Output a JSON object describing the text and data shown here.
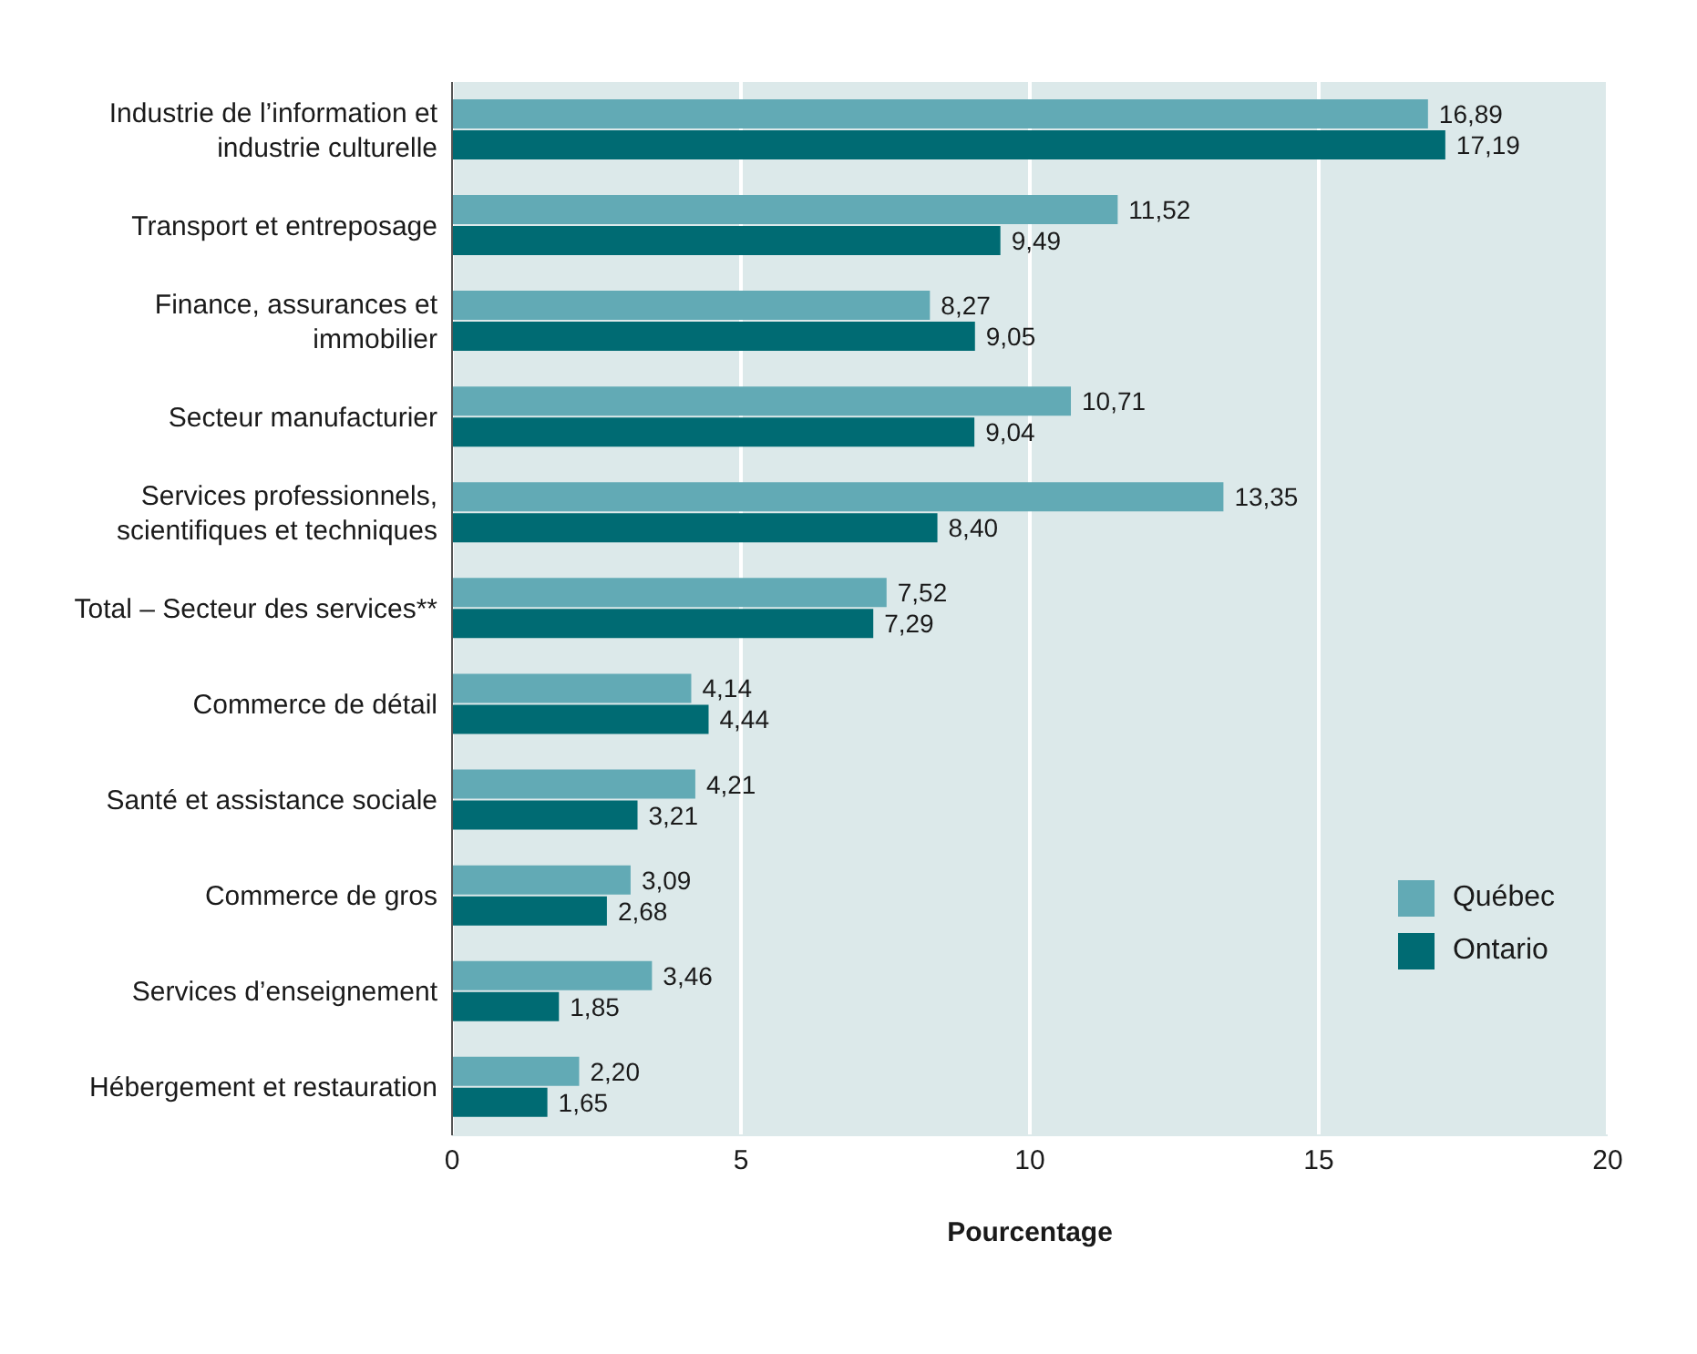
{
  "chart_data": {
    "type": "bar",
    "orientation": "horizontal",
    "xlabel": "Pourcentage",
    "categories": [
      "Industrie de l’information et industrie culturelle",
      "Transport et entreposage",
      "Finance, assurances et immobilier",
      "Secteur manufacturier",
      "Services professionnels, scientifiques et techniques",
      "Total – Secteur des services**",
      "Commerce de détail",
      "Santé et assistance sociale",
      "Commerce de gros",
      "Services d’enseignement",
      "Hébergement et restauration"
    ],
    "series": [
      {
        "name": "Québec",
        "color": "#62aab5",
        "values": [
          16.89,
          11.52,
          8.27,
          10.71,
          13.35,
          7.52,
          4.14,
          4.21,
          3.09,
          3.46,
          2.2
        ],
        "value_labels": [
          "16,89",
          "11,52",
          "8,27",
          "10,71",
          "13,35",
          "7,52",
          "4,14",
          "4,21",
          "3,09",
          "3,46",
          "2,20"
        ]
      },
      {
        "name": "Ontario",
        "color": "#006b73",
        "values": [
          17.19,
          9.49,
          9.05,
          9.04,
          8.4,
          7.29,
          4.44,
          3.21,
          2.68,
          1.85,
          1.65
        ],
        "value_labels": [
          "17,19",
          "9,49",
          "9,05",
          "9,04",
          "8,40",
          "7,29",
          "4,44",
          "3,21",
          "2,68",
          "1,85",
          "1,65"
        ]
      }
    ],
    "xlim": [
      0,
      20
    ],
    "xticks": [
      0,
      5,
      10,
      15,
      20
    ],
    "grid": "x",
    "legend": "right"
  }
}
